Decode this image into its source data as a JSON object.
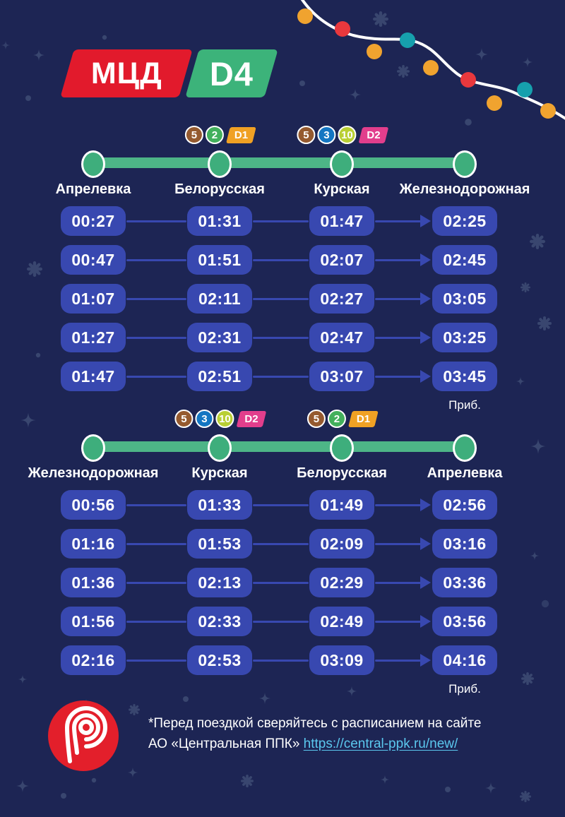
{
  "brand": {
    "mcd_label": "МЦД",
    "line_label": "D4",
    "mcd_bg": "#e21a2c",
    "line_bg": "#3cb37a"
  },
  "colors": {
    "background": "#1d2554",
    "pill_blue": "#3848b0",
    "route_green": "#4db587",
    "node_green": "#3eae7c",
    "link_blue": "#5bc8ee",
    "decor_blue": "#39466f"
  },
  "sections": [
    {
      "stations": [
        "Апрелевка",
        "Белорусская",
        "Курская",
        "Железнодорожная"
      ],
      "station_badges": [
        [],
        [
          {
            "type": "circle",
            "label": "5",
            "color": "#955a2f"
          },
          {
            "type": "circle",
            "label": "2",
            "color": "#43b05c"
          },
          {
            "type": "parallelogram",
            "label": "D1",
            "color": "#f0a124"
          }
        ],
        [
          {
            "type": "circle",
            "label": "5",
            "color": "#955a2f"
          },
          {
            "type": "circle",
            "label": "3",
            "color": "#1476c2"
          },
          {
            "type": "circle",
            "label": "10",
            "color": "#b9cf34"
          },
          {
            "type": "parallelogram",
            "label": "D2",
            "color": "#e23e8c"
          }
        ],
        []
      ],
      "rows": [
        [
          "00:27",
          "01:31",
          "01:47",
          "02:25"
        ],
        [
          "00:47",
          "01:51",
          "02:07",
          "02:45"
        ],
        [
          "01:07",
          "02:11",
          "02:27",
          "03:05"
        ],
        [
          "01:27",
          "02:31",
          "02:47",
          "03:25"
        ],
        [
          "01:47",
          "02:51",
          "03:07",
          "03:45"
        ]
      ],
      "arrival_label": "Приб."
    },
    {
      "stations": [
        "Железнодорожная",
        "Курская",
        "Белорусская",
        "Апрелевка"
      ],
      "station_badges": [
        [],
        [
          {
            "type": "circle",
            "label": "5",
            "color": "#955a2f"
          },
          {
            "type": "circle",
            "label": "3",
            "color": "#1476c2"
          },
          {
            "type": "circle",
            "label": "10",
            "color": "#b9cf34"
          },
          {
            "type": "parallelogram",
            "label": "D2",
            "color": "#e23e8c"
          }
        ],
        [
          {
            "type": "circle",
            "label": "5",
            "color": "#955a2f"
          },
          {
            "type": "circle",
            "label": "2",
            "color": "#43b05c"
          },
          {
            "type": "parallelogram",
            "label": "D1",
            "color": "#f0a124"
          }
        ],
        []
      ],
      "rows": [
        [
          "00:56",
          "01:33",
          "01:49",
          "02:56"
        ],
        [
          "01:16",
          "01:53",
          "02:09",
          "03:16"
        ],
        [
          "01:36",
          "02:13",
          "02:29",
          "03:36"
        ],
        [
          "01:56",
          "02:33",
          "02:49",
          "03:56"
        ],
        [
          "02:16",
          "02:53",
          "03:09",
          "04:16"
        ]
      ],
      "arrival_label": "Приб."
    }
  ],
  "footer": {
    "note_line1": "*Перед поездкой сверяйтесь с расписанием на сайте",
    "note_line2_prefix": "АО «Центральная ППК» ",
    "link_text": "https://central-ppk.ru/new/"
  }
}
